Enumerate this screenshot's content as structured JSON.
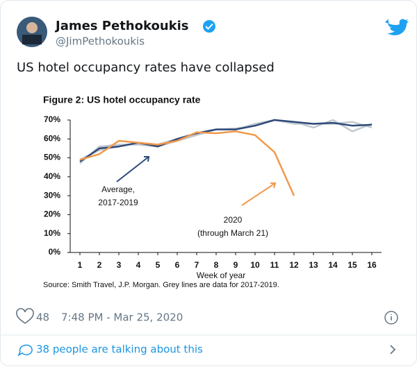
{
  "tweet": {
    "name": "James Pethokoukis",
    "handle": "@JimPethokoukis",
    "text": "US hotel occupancy rates have collapsed",
    "likes": 48,
    "time": "7:48 PM - Mar 25, 2020",
    "footer": "38 people are talking about this"
  },
  "chart_data": {
    "type": "line",
    "title": "Figure 2: US hotel occupancy rate",
    "xlabel": "Week of year",
    "source": "Source: Smith Travel, J.P. Morgan. Grey lines are data for 2017-2019.",
    "x": [
      1,
      2,
      3,
      4,
      5,
      6,
      7,
      8,
      9,
      10,
      11,
      12,
      13,
      14,
      15,
      16
    ],
    "xlim": [
      0.5,
      16.5
    ],
    "xticks": [
      1,
      2,
      3,
      4,
      5,
      6,
      7,
      8,
      9,
      10,
      11,
      12,
      13,
      14,
      15,
      16
    ],
    "ylim": [
      0,
      70
    ],
    "yticks": [
      {
        "value": 0,
        "label": "0%"
      },
      {
        "value": 10,
        "label": "10%"
      },
      {
        "value": 20,
        "label": "20%"
      },
      {
        "value": 30,
        "label": "30%"
      },
      {
        "value": 40,
        "label": "40%"
      },
      {
        "value": 50,
        "label": "50%"
      },
      {
        "value": 60,
        "label": "60%"
      },
      {
        "value": 70,
        "label": "70%"
      }
    ],
    "series": [
      {
        "color": "#c3c9d1",
        "values": [
          47,
          56,
          57,
          57,
          56,
          59,
          62,
          65,
          65.5,
          67,
          70,
          69,
          66,
          70,
          64,
          68
        ]
      },
      {
        "color": "#c3c9d1",
        "values": [
          49,
          54,
          56,
          58,
          57,
          60,
          63,
          65,
          65,
          68,
          70,
          68,
          68,
          68,
          69,
          66
        ]
      },
      {
        "color": "#2e4a7a",
        "values": [
          48,
          55,
          56,
          58,
          56,
          60,
          63,
          65,
          65,
          67,
          70,
          69,
          68,
          68.5,
          67,
          67.5
        ]
      },
      {
        "color": "#f0994a",
        "values": [
          49,
          52,
          59,
          58,
          57,
          59,
          63.5,
          63,
          64,
          62,
          53,
          30,
          null,
          null,
          null,
          null
        ]
      }
    ],
    "annotations": [
      {
        "lines": [
          "Average,",
          "2017-2019"
        ]
      },
      {
        "lines": [
          "2020",
          "(through March 21)"
        ]
      }
    ]
  }
}
